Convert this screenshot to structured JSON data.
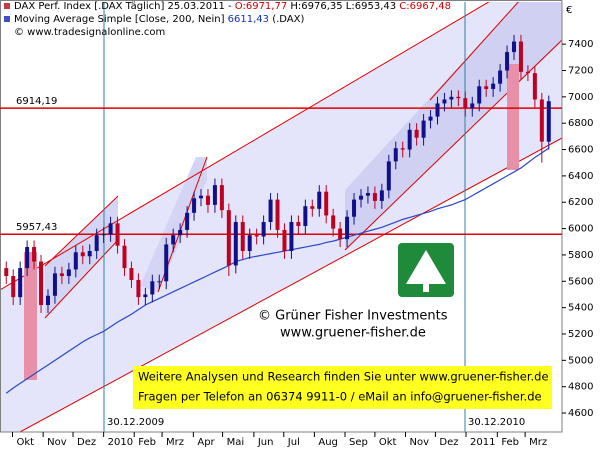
{
  "chart_data": {
    "type": "candlestick",
    "header": [
      [
        {
          "text": "DAX Perf. Index [.DAX  Täglich] 25.03.2011 - ",
          "color": "#000000"
        },
        {
          "text": "O:6971,77",
          "color": "#d00000"
        },
        {
          "text": " H:6976,35 L:6953,43 ",
          "color": "#000000"
        },
        {
          "text": "C:6967,48",
          "color": "#d00000"
        }
      ],
      [
        {
          "text": "Moving Average Simple [Close, 200, Nein] ",
          "color": "#000000"
        },
        {
          "text": "6611,43",
          "color": "#1030c0"
        },
        {
          "text": " (.DAX)",
          "color": "#000000"
        }
      ],
      [
        {
          "text": "© www.tradesignalonline.com",
          "color": "#000000"
        }
      ]
    ],
    "y_unit": "€",
    "ylim": [
      4456,
      7720
    ],
    "yticks": [
      4600,
      4800,
      5000,
      5200,
      5400,
      5600,
      5800,
      6000,
      6200,
      6400,
      6600,
      6800,
      7000,
      7200,
      7400
    ],
    "xlim": [
      -0.9,
      79.9
    ],
    "xticks": [
      {
        "value": 0.9,
        "label": "Okt"
      },
      {
        "value": 5.3,
        "label": "Nov"
      },
      {
        "value": 9.6,
        "label": "Dez"
      },
      {
        "value": 14.0,
        "label": "2010"
      },
      {
        "value": 18.4,
        "label": "Feb"
      },
      {
        "value": 22.4,
        "label": "Mrz"
      },
      {
        "value": 26.9,
        "label": "Apr"
      },
      {
        "value": 31.1,
        "label": "Mai"
      },
      {
        "value": 35.6,
        "label": "Jun"
      },
      {
        "value": 39.9,
        "label": "Jul"
      },
      {
        "value": 44.3,
        "label": "Aug"
      },
      {
        "value": 48.7,
        "label": "Sep"
      },
      {
        "value": 53.0,
        "label": "Okt"
      },
      {
        "value": 57.4,
        "label": "Nov"
      },
      {
        "value": 61.7,
        "label": "Dez"
      },
      {
        "value": 66.1,
        "label": "2011"
      },
      {
        "value": 70.6,
        "label": "Feb"
      },
      {
        "value": 74.6,
        "label": "Mrz"
      }
    ],
    "up_color": "#10108a",
    "down_color": "#c00020",
    "open": [
      5700,
      5640,
      5480,
      5700,
      5860,
      5750,
      5420,
      5490,
      5660,
      5640,
      5690,
      5820,
      5790,
      5830,
      5950,
      5957,
      6040,
      5870,
      5700,
      5610,
      5480,
      5500,
      5600,
      5600,
      5880,
      5950,
      5990,
      6120,
      6230,
      6250,
      6180,
      6330,
      6140,
      5720,
      6050,
      5830,
      5950,
      5940,
      6050,
      6220,
      5990,
      5830,
      6050,
      6020,
      6170,
      6150,
      6280,
      6100,
      6000,
      5920,
      6090,
      6220,
      6250,
      6270,
      6210,
      6290,
      6510,
      6610,
      6600,
      6750,
      6690,
      6820,
      6850,
      6950,
      6980,
      7000,
      6990,
      6914,
      6950,
      7080,
      7060,
      7100,
      7200,
      7340,
      7420,
      7190,
      7180,
      6980,
      6660
    ],
    "high": [
      5750,
      5690,
      5750,
      5910,
      5910,
      5800,
      5540,
      5710,
      5710,
      5740,
      5870,
      5870,
      5880,
      6000,
      6010,
      6090,
      6090,
      5920,
      5750,
      5660,
      5550,
      5650,
      5650,
      5930,
      6000,
      6040,
      6170,
      6280,
      6300,
      6300,
      6380,
      6380,
      6190,
      6100,
      6100,
      6000,
      6000,
      6100,
      6270,
      6270,
      6040,
      6100,
      6100,
      6220,
      6220,
      6330,
      6330,
      6150,
      6050,
      6140,
      6270,
      6300,
      6320,
      6320,
      6340,
      6560,
      6660,
      6660,
      6800,
      6800,
      6870,
      6900,
      7000,
      7030,
      7050,
      7050,
      7040,
      7000,
      7130,
      7130,
      7150,
      7250,
      7390,
      7470,
      7470,
      7240,
      7230,
      7030,
      7010
    ],
    "low": [
      5580,
      5420,
      5420,
      5640,
      5690,
      5360,
      5360,
      5430,
      5580,
      5580,
      5630,
      5730,
      5730,
      5770,
      5890,
      5900,
      5810,
      5640,
      5550,
      5420,
      5420,
      5440,
      5540,
      5540,
      5820,
      5890,
      5930,
      6060,
      6170,
      6120,
      6120,
      6080,
      5640,
      5660,
      5770,
      5770,
      5880,
      5880,
      5990,
      5930,
      5770,
      5770,
      5960,
      5960,
      6090,
      6090,
      6040,
      5940,
      5860,
      5860,
      6030,
      6160,
      6190,
      6150,
      6150,
      6230,
      6450,
      6540,
      6540,
      6630,
      6630,
      6760,
      6790,
      6890,
      6920,
      6930,
      6850,
      6850,
      6890,
      7000,
      7000,
      7040,
      7140,
      7280,
      7130,
      7120,
      6920,
      6500,
      6600
    ],
    "close": [
      5640,
      5480,
      5700,
      5860,
      5750,
      5420,
      5490,
      5660,
      5640,
      5690,
      5820,
      5790,
      5830,
      5950,
      5957,
      6040,
      5870,
      5700,
      5610,
      5480,
      5500,
      5600,
      5600,
      5880,
      5950,
      5990,
      6120,
      6230,
      6250,
      6180,
      6330,
      6140,
      5720,
      6050,
      5830,
      5950,
      5940,
      6050,
      6220,
      5990,
      5830,
      6050,
      6020,
      6170,
      6150,
      6280,
      6100,
      6000,
      5920,
      6090,
      6220,
      6250,
      6270,
      6210,
      6290,
      6510,
      6610,
      6600,
      6750,
      6690,
      6820,
      6850,
      6950,
      6980,
      7000,
      6990,
      6914,
      6950,
      7080,
      7060,
      7100,
      7200,
      7340,
      7420,
      7190,
      7180,
      6980,
      6660,
      6967
    ],
    "moving_average": {
      "color": "#2848c8",
      "values": [
        4750,
        4790,
        4825,
        4860,
        4895,
        4930,
        4965,
        5000,
        5035,
        5070,
        5105,
        5140,
        5170,
        5195,
        5220,
        5255,
        5290,
        5320,
        5350,
        5385,
        5420,
        5445,
        5470,
        5495,
        5520,
        5545,
        5570,
        5595,
        5620,
        5645,
        5670,
        5695,
        5720,
        5750,
        5765,
        5780,
        5790,
        5800,
        5810,
        5820,
        5830,
        5840,
        5850,
        5860,
        5870,
        5880,
        5895,
        5905,
        5920,
        5935,
        5950,
        5965,
        5980,
        5995,
        6010,
        6030,
        6050,
        6070,
        6085,
        6100,
        6115,
        6130,
        6150,
        6165,
        6180,
        6200,
        6220,
        6250,
        6280,
        6310,
        6340,
        6370,
        6400,
        6430,
        6460,
        6500,
        6540,
        6575,
        6611
      ]
    },
    "hlines": [
      {
        "value": 6914.19,
        "label": "6914,19",
        "color": "#e00000"
      },
      {
        "value": 5957.43,
        "label": "5957,43",
        "color": "#e00000"
      }
    ],
    "date_markers": [
      "30.12.2009",
      "30.12.2010"
    ],
    "logo_lines": [
      "© Grüner Fisher Investments",
      "www.gruener-fisher.de"
    ],
    "info_box": [
      "Weitere Analysen und Research finden Sie unter www.gruener-fisher.de",
      "Fragen per Telefon an 06374 9911-0 / eMail an info@gruener-fisher.de"
    ]
  }
}
